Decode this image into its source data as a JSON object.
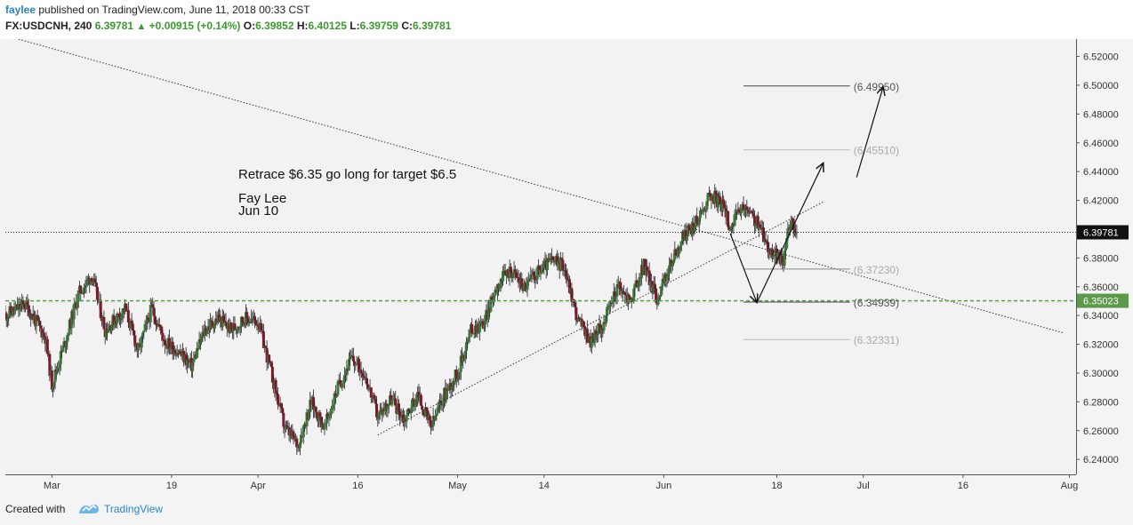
{
  "header": {
    "user": "faylee",
    "published_text": "published on TradingView.com, June 11, 2018 00:33 CST",
    "symbol": "FX:USDCNH, 240",
    "last": "6.39781",
    "change": "+0.00915 (+0.14%)",
    "o_label": "O:",
    "o_value": "6.39852",
    "h_label": "H:",
    "h_value": "6.40125",
    "l_label": "L:",
    "l_value": "6.39759",
    "c_label": "C:",
    "c_value": "6.39781"
  },
  "footer": {
    "created_with": "Created with",
    "brand": "TradingView"
  },
  "colors": {
    "up": "#3a7a3a",
    "down": "#7a1a2a",
    "wick": "#222222",
    "support": "#52a044",
    "support_label_bg": "#5a9a48",
    "brand": "#2a86c8"
  },
  "chart_data": {
    "type": "candlestick",
    "ylim": [
      6.2296,
      6.5296
    ],
    "y_ticks": [
      "6.52000",
      "6.50000",
      "6.48000",
      "6.46000",
      "6.44000",
      "6.42000",
      "6.40000",
      "6.38000",
      "6.36000",
      "6.34000",
      "6.32000",
      "6.30000",
      "6.28000",
      "6.26000",
      "6.24000"
    ],
    "x_ticks": [
      {
        "label": "Mar",
        "date": "2018-03-01"
      },
      {
        "label": "19",
        "date": "2018-03-19"
      },
      {
        "label": "Apr",
        "date": "2018-04-01"
      },
      {
        "label": "16",
        "date": "2018-04-16"
      },
      {
        "label": "May",
        "date": "2018-05-01"
      },
      {
        "label": "14",
        "date": "2018-05-14"
      },
      {
        "label": "Jun",
        "date": "2018-06-01"
      },
      {
        "label": "18",
        "date": "2018-06-18"
      },
      {
        "label": "Jul",
        "date": "2018-07-01"
      },
      {
        "label": "16",
        "date": "2018-07-16"
      },
      {
        "label": "Aug",
        "date": "2018-08-01"
      }
    ],
    "xlim": [
      "2018-02-22",
      "2018-08-02"
    ],
    "price_path": [
      [
        "2018-02-22",
        6.34
      ],
      [
        "2018-02-25",
        6.348
      ],
      [
        "2018-02-28",
        6.325
      ],
      [
        "2018-03-01",
        6.292
      ],
      [
        "2018-03-03",
        6.322
      ],
      [
        "2018-03-05",
        6.355
      ],
      [
        "2018-03-07",
        6.368
      ],
      [
        "2018-03-09",
        6.33
      ],
      [
        "2018-03-12",
        6.345
      ],
      [
        "2018-03-14",
        6.315
      ],
      [
        "2018-03-16",
        6.345
      ],
      [
        "2018-03-18",
        6.322
      ],
      [
        "2018-03-20",
        6.315
      ],
      [
        "2018-03-22",
        6.305
      ],
      [
        "2018-03-24",
        6.33
      ],
      [
        "2018-03-26",
        6.338
      ],
      [
        "2018-03-28",
        6.33
      ],
      [
        "2018-03-30",
        6.338
      ],
      [
        "2018-04-01",
        6.336
      ],
      [
        "2018-04-03",
        6.3
      ],
      [
        "2018-04-05",
        6.262
      ],
      [
        "2018-04-07",
        6.25
      ],
      [
        "2018-04-09",
        6.28
      ],
      [
        "2018-04-11",
        6.262
      ],
      [
        "2018-04-13",
        6.29
      ],
      [
        "2018-04-15",
        6.31
      ],
      [
        "2018-04-17",
        6.3
      ],
      [
        "2018-04-19",
        6.27
      ],
      [
        "2018-04-21",
        6.282
      ],
      [
        "2018-04-23",
        6.268
      ],
      [
        "2018-04-25",
        6.285
      ],
      [
        "2018-04-27",
        6.262
      ],
      [
        "2018-04-29",
        6.285
      ],
      [
        "2018-05-01",
        6.3
      ],
      [
        "2018-05-03",
        6.33
      ],
      [
        "2018-05-05",
        6.335
      ],
      [
        "2018-05-07",
        6.362
      ],
      [
        "2018-05-09",
        6.372
      ],
      [
        "2018-05-11",
        6.36
      ],
      [
        "2018-05-13",
        6.37
      ],
      [
        "2018-05-15",
        6.378
      ],
      [
        "2018-05-17",
        6.375
      ],
      [
        "2018-05-19",
        6.338
      ],
      [
        "2018-05-21",
        6.322
      ],
      [
        "2018-05-23",
        6.335
      ],
      [
        "2018-05-25",
        6.36
      ],
      [
        "2018-05-27",
        6.35
      ],
      [
        "2018-05-29",
        6.375
      ],
      [
        "2018-05-31",
        6.352
      ],
      [
        "2018-06-02",
        6.375
      ],
      [
        "2018-06-04",
        6.395
      ],
      [
        "2018-06-06",
        6.405
      ],
      [
        "2018-06-08",
        6.425
      ],
      [
        "2018-06-10",
        6.415
      ],
      [
        "2018-06-11",
        6.402
      ],
      [
        "2018-06-13",
        6.415
      ],
      [
        "2018-06-15",
        6.405
      ],
      [
        "2018-06-17",
        6.385
      ],
      [
        "2018-06-19",
        6.378
      ],
      [
        "2018-06-20",
        6.405
      ],
      [
        "2018-06-21",
        6.398
      ]
    ],
    "level_lines": [
      {
        "label": "(6.49950)",
        "value": 6.4995,
        "color": "#444444"
      },
      {
        "label": "(6.45510)",
        "value": 6.4551,
        "color": "#b8b8b8"
      },
      {
        "label": "(6.37230)",
        "value": 6.3723,
        "color": "#888888"
      },
      {
        "label": "(6.34939)",
        "value": 6.34939,
        "color": "#444444"
      },
      {
        "label": "(6.32331)",
        "value": 6.32331,
        "color": "#b8b8b8"
      }
    ],
    "last_price": {
      "label": "6.39781",
      "value": 6.39781
    },
    "support": {
      "label": "6.35023",
      "value": 6.35023
    },
    "annotations": {
      "text1": "Retrace $6.35 go long for target $6.5",
      "author": "Fay Lee",
      "date": "Jun 10"
    }
  }
}
